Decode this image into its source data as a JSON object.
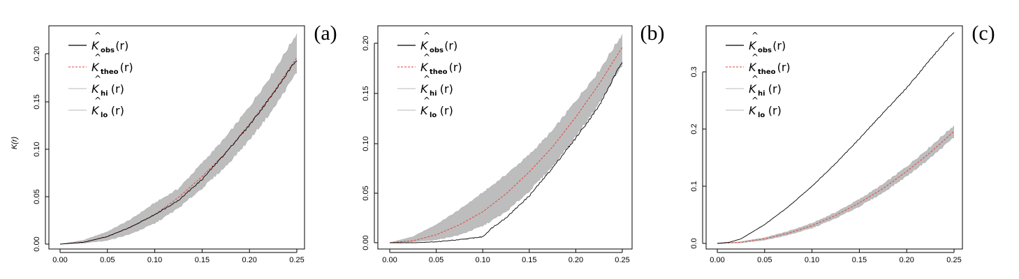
{
  "chart_data": [
    {
      "type": "line",
      "panel_label": "(a)",
      "ylabel": "K(r)",
      "xlim": [
        0,
        0.25
      ],
      "ylim": [
        0,
        0.22
      ],
      "x_ticks": [
        "0.00",
        "0.05",
        "0.10",
        "0.15",
        "0.20",
        "0.25"
      ],
      "y_ticks": [
        "0.00",
        "0.05",
        "0.10",
        "0.15",
        "0.20"
      ],
      "legend": {
        "position": "top-left",
        "entries": [
          {
            "symbol": "K",
            "sub": "obs",
            "arg": "(r)",
            "style": "solid",
            "color": "#000000"
          },
          {
            "symbol": "K",
            "sub": "theo",
            "arg": "(r)",
            "style": "dashed",
            "color": "#e8403a"
          },
          {
            "symbol": "K",
            "sub": "hi",
            "arg": "(r)",
            "style": "solid",
            "color": "#c8c8c8"
          },
          {
            "symbol": "K",
            "sub": "lo",
            "arg": "(r)",
            "style": "solid",
            "color": "#c8c8c8"
          }
        ]
      },
      "series": [
        {
          "name": "obs",
          "x": [
            0,
            0.025,
            0.05,
            0.075,
            0.1,
            0.125,
            0.15,
            0.175,
            0.2,
            0.225,
            0.25
          ],
          "values": [
            0,
            0.002,
            0.008,
            0.018,
            0.031,
            0.046,
            0.068,
            0.096,
            0.125,
            0.158,
            0.194
          ]
        },
        {
          "name": "theo",
          "x": [
            0,
            0.025,
            0.05,
            0.075,
            0.1,
            0.125,
            0.15,
            0.175,
            0.2,
            0.225,
            0.25
          ],
          "values": [
            0,
            0.002,
            0.008,
            0.018,
            0.031,
            0.049,
            0.071,
            0.096,
            0.126,
            0.159,
            0.196
          ]
        },
        {
          "name": "hi",
          "x": [
            0,
            0.025,
            0.05,
            0.075,
            0.1,
            0.125,
            0.15,
            0.175,
            0.2,
            0.225,
            0.25
          ],
          "values": [
            0,
            0.004,
            0.013,
            0.026,
            0.043,
            0.058,
            0.085,
            0.112,
            0.144,
            0.18,
            0.221
          ]
        },
        {
          "name": "lo",
          "x": [
            0,
            0.025,
            0.05,
            0.075,
            0.1,
            0.125,
            0.15,
            0.175,
            0.2,
            0.225,
            0.25
          ],
          "values": [
            0,
            0.001,
            0.004,
            0.011,
            0.022,
            0.038,
            0.059,
            0.082,
            0.11,
            0.142,
            0.181
          ]
        }
      ]
    },
    {
      "type": "line",
      "panel_label": "(b)",
      "ylabel": "",
      "xlim": [
        0,
        0.25
      ],
      "ylim": [
        0,
        0.21
      ],
      "x_ticks": [
        "0.00",
        "0.05",
        "0.10",
        "0.15",
        "0.20",
        "0.25"
      ],
      "y_ticks": [
        "0.00",
        "0.05",
        "0.10",
        "0.15",
        "0.20"
      ],
      "legend": {
        "position": "top-left",
        "entries": [
          {
            "symbol": "K",
            "sub": "obs",
            "arg": "(r)",
            "style": "solid",
            "color": "#000000"
          },
          {
            "symbol": "K",
            "sub": "theo",
            "arg": "(r)",
            "style": "dashed",
            "color": "#e8403a"
          },
          {
            "symbol": "K",
            "sub": "hi",
            "arg": "(r)",
            "style": "solid",
            "color": "#c8c8c8"
          },
          {
            "symbol": "K",
            "sub": "lo",
            "arg": "(r)",
            "style": "solid",
            "color": "#c8c8c8"
          }
        ]
      },
      "series": [
        {
          "name": "obs",
          "x": [
            0,
            0.025,
            0.05,
            0.075,
            0.1,
            0.11,
            0.125,
            0.15,
            0.175,
            0.2,
            0.225,
            0.25
          ],
          "values": [
            0,
            0,
            0.001,
            0.003,
            0.006,
            0.015,
            0.025,
            0.047,
            0.075,
            0.105,
            0.137,
            0.182
          ]
        },
        {
          "name": "theo",
          "x": [
            0,
            0.025,
            0.05,
            0.075,
            0.1,
            0.125,
            0.15,
            0.175,
            0.2,
            0.225,
            0.25
          ],
          "values": [
            0,
            0.002,
            0.008,
            0.018,
            0.031,
            0.049,
            0.071,
            0.096,
            0.126,
            0.159,
            0.196
          ]
        },
        {
          "name": "hi",
          "x": [
            0,
            0.025,
            0.05,
            0.075,
            0.1,
            0.125,
            0.15,
            0.175,
            0.2,
            0.225,
            0.25
          ],
          "values": [
            0,
            0.006,
            0.018,
            0.033,
            0.05,
            0.068,
            0.088,
            0.112,
            0.142,
            0.172,
            0.209
          ]
        },
        {
          "name": "lo",
          "x": [
            0,
            0.025,
            0.05,
            0.075,
            0.1,
            0.125,
            0.15,
            0.175,
            0.2,
            0.225,
            0.25
          ],
          "values": [
            0,
            0.001,
            0.003,
            0.008,
            0.017,
            0.031,
            0.052,
            0.077,
            0.107,
            0.14,
            0.178
          ]
        }
      ]
    },
    {
      "type": "line",
      "panel_label": "(c)",
      "ylabel": "",
      "xlim": [
        0,
        0.25
      ],
      "ylim": [
        0,
        0.37
      ],
      "x_ticks": [
        "0.00",
        "0.05",
        "0.10",
        "0.15",
        "0.20",
        "0.25"
      ],
      "y_ticks": [
        "0.0",
        "0.1",
        "0.2",
        "0.3"
      ],
      "legend": {
        "position": "top-left",
        "entries": [
          {
            "symbol": "K",
            "sub": "obs",
            "arg": "(r)",
            "style": "solid",
            "color": "#000000"
          },
          {
            "symbol": "K",
            "sub": "theo",
            "arg": "(r)",
            "style": "dashed",
            "color": "#e8403a"
          },
          {
            "symbol": "K",
            "sub": "hi",
            "arg": "(r)",
            "style": "solid",
            "color": "#c8c8c8"
          },
          {
            "symbol": "K",
            "sub": "lo",
            "arg": "(r)",
            "style": "solid",
            "color": "#c8c8c8"
          }
        ]
      },
      "series": [
        {
          "name": "obs",
          "x": [
            0,
            0.0125,
            0.025,
            0.05,
            0.075,
            0.1,
            0.125,
            0.15,
            0.175,
            0.2,
            0.225,
            0.25
          ],
          "values": [
            0,
            0.002,
            0.008,
            0.033,
            0.064,
            0.1,
            0.14,
            0.183,
            0.228,
            0.272,
            0.322,
            0.37
          ]
        },
        {
          "name": "theo",
          "x": [
            0,
            0.025,
            0.05,
            0.075,
            0.1,
            0.125,
            0.15,
            0.175,
            0.2,
            0.225,
            0.25
          ],
          "values": [
            0,
            0.002,
            0.008,
            0.018,
            0.031,
            0.049,
            0.071,
            0.096,
            0.126,
            0.159,
            0.196
          ]
        },
        {
          "name": "hi",
          "x": [
            0,
            0.025,
            0.05,
            0.075,
            0.1,
            0.125,
            0.15,
            0.175,
            0.2,
            0.225,
            0.25
          ],
          "values": [
            0,
            0.003,
            0.01,
            0.021,
            0.035,
            0.054,
            0.077,
            0.103,
            0.134,
            0.169,
            0.206
          ]
        },
        {
          "name": "lo",
          "x": [
            0,
            0.025,
            0.05,
            0.075,
            0.1,
            0.125,
            0.15,
            0.175,
            0.2,
            0.225,
            0.25
          ],
          "values": [
            0,
            0.001,
            0.006,
            0.015,
            0.027,
            0.044,
            0.065,
            0.089,
            0.118,
            0.15,
            0.186
          ]
        }
      ]
    }
  ],
  "colors": {
    "obs": "#000000",
    "theo": "#e8403a",
    "envelope": "#bdbdbd",
    "axis": "#000000"
  }
}
